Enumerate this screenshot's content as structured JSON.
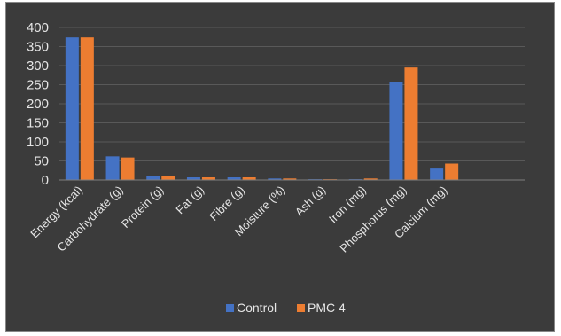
{
  "chart_data": {
    "type": "bar",
    "title": "",
    "xlabel": "",
    "ylabel": "",
    "ylim": [
      0,
      400
    ],
    "yticks": [
      0,
      50,
      100,
      150,
      200,
      250,
      300,
      350,
      400
    ],
    "grid": true,
    "legend_position": "bottom",
    "categories": [
      "Energy (kcal)",
      "Carbohydrate (g)",
      "Protein (g)",
      "Fat (g)",
      "Fibre (g)",
      "Moisture (%)",
      "Ash (g)",
      "Iron (mg)",
      "Phosphorus (mg)",
      "Calcium (mg)"
    ],
    "series": [
      {
        "name": "Control",
        "color": "#4472c4",
        "values": [
          374,
          62,
          11,
          7,
          7,
          4,
          2,
          2,
          258,
          30
        ]
      },
      {
        "name": "PMC 4",
        "color": "#ed7d31",
        "values": [
          374,
          59,
          11,
          7,
          7,
          4,
          2,
          4,
          295,
          43
        ]
      }
    ],
    "colors": {
      "background": "#3b3b3b",
      "text": "#e6e6e6",
      "grid": "#595959"
    }
  }
}
